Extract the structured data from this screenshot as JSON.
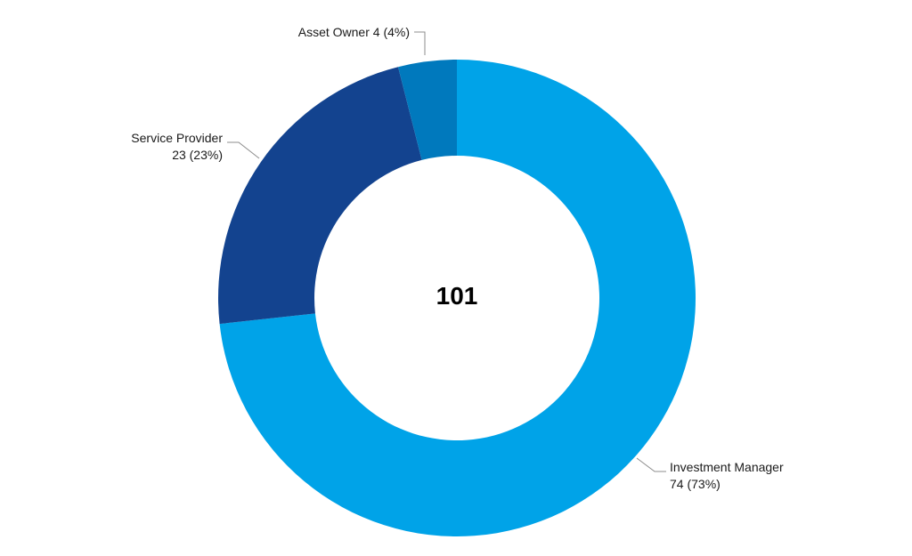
{
  "chart_data": {
    "type": "pie",
    "variant": "donut",
    "total_label": "101",
    "slices": [
      {
        "name": "Investment Manager",
        "value": 74,
        "percent_label": "74 (73%)",
        "color": "#00A3E8"
      },
      {
        "name": "Service Provider",
        "value": 23,
        "percent_label": "23 (23%)",
        "color": "#13438F"
      },
      {
        "name": "Asset Owner",
        "value": 4,
        "percent_label": "4 (4%)",
        "color": "#0079BD"
      }
    ]
  }
}
